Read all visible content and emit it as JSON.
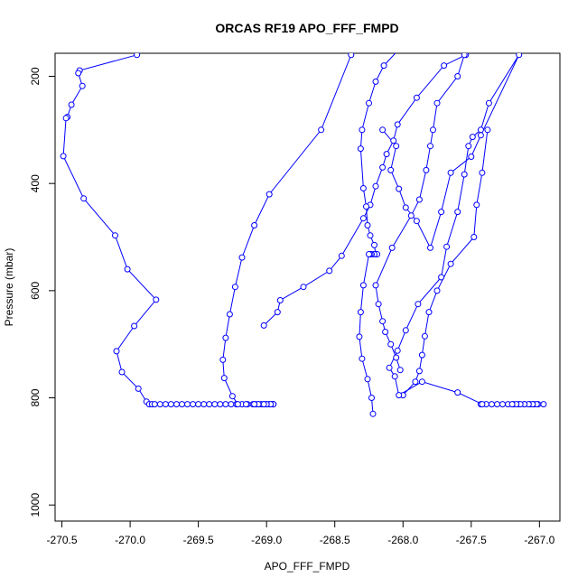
{
  "chart_data": {
    "type": "line",
    "title": "ORCAS RF19 APO_FFF_FMPD",
    "xlabel": "APO_FFF_FMPD",
    "ylabel": "Pressure (mbar)",
    "xlim": [
      -270.55,
      -266.85
    ],
    "ylim": [
      1030,
      157
    ],
    "y_inverted": true,
    "xticks": [
      -270.5,
      -270.0,
      -269.5,
      -269.0,
      -268.5,
      -268.0,
      -267.5,
      -267.0
    ],
    "xtick_labels": [
      "-270.5",
      "-270.0",
      "-269.5",
      "-269.0",
      "-268.5",
      "-268.0",
      "-267.5",
      "-267.0"
    ],
    "yticks": [
      200,
      400,
      600,
      800,
      1000
    ],
    "ytick_labels": [
      "200",
      "400",
      "600",
      "800",
      "1000"
    ],
    "grid": false,
    "series_color": "#0000ff",
    "series": [
      {
        "x": [
          -269.95,
          -270.37,
          -270.38,
          -270.35,
          -270.43,
          -270.46,
          -270.47,
          -270.49,
          -270.34,
          -270.11,
          -270.02,
          -269.81,
          -269.97,
          -270.1,
          -270.06,
          -269.94,
          -269.88,
          -269.86,
          -269.84,
          -269.82,
          -269.78,
          -269.74,
          -269.7,
          -269.66,
          -269.62,
          -269.58,
          -269.54,
          -269.5,
          -269.46,
          -269.42,
          -269.38,
          -269.34,
          -269.3,
          -269.26,
          -269.22,
          -269.18,
          -269.14,
          -269.1,
          -269.08,
          -269.06,
          -269.04,
          -269.02,
          -269.0,
          -268.98,
          -268.96,
          -268.95
        ],
        "y": [
          160,
          189,
          194,
          218,
          253,
          276,
          278,
          349,
          428,
          497,
          560,
          617,
          666,
          713,
          752,
          783,
          807,
          812,
          812,
          812,
          812,
          812,
          812,
          812,
          812,
          812,
          812,
          812,
          812,
          812,
          812,
          812,
          812,
          812,
          812,
          812,
          812,
          812,
          812,
          812,
          812,
          812,
          812,
          812,
          812,
          812
        ]
      },
      {
        "x": [
          -268.95,
          -268.97,
          -269.0,
          -269.02,
          -269.06,
          -269.09,
          -269.15,
          -269.21,
          -269.25,
          -269.31,
          -269.32,
          -269.3,
          -269.27,
          -269.23,
          -269.18,
          -269.09,
          -268.98,
          -268.6,
          -268.38
        ],
        "y": [
          812,
          812,
          812,
          812,
          812,
          812,
          812,
          812,
          797,
          763,
          729,
          688,
          644,
          593,
          538,
          478,
          420,
          300,
          160
        ]
      },
      {
        "x": [
          -269.02,
          -268.92,
          -268.9,
          -268.73,
          -268.54,
          -268.45,
          -268.29,
          -268.24,
          -268.2,
          -268.15,
          -268.12,
          -268.07,
          -268.04,
          -267.9,
          -267.7,
          -267.54
        ],
        "y": [
          665,
          640,
          618,
          593,
          563,
          535,
          465,
          440,
          405,
          370,
          345,
          320,
          290,
          240,
          180,
          160
        ]
      },
      {
        "x": [
          -268.2,
          -268.21,
          -268.24,
          -268.26,
          -268.27,
          -268.29,
          -268.31,
          -268.3,
          -268.25,
          -268.2,
          -268.14,
          -268.03,
          -267.87,
          -267.75,
          -267.55
        ],
        "y": [
          532,
          515,
          497,
          478,
          443,
          409,
          335,
          300,
          250,
          210,
          180,
          150,
          120,
          100,
          80
        ]
      },
      {
        "x": [
          -268.19,
          -268.21,
          -268.23,
          -268.24,
          -268.25,
          -268.29,
          -268.31,
          -268.32,
          -268.3,
          -268.26,
          -268.23,
          -268.22
        ],
        "y": [
          532,
          532,
          532,
          532,
          532,
          590,
          640,
          686,
          727,
          765,
          800,
          830
        ]
      },
      {
        "x": [
          -268.0,
          -267.91,
          -267.88,
          -267.86,
          -267.84,
          -267.81,
          -267.75,
          -267.65,
          -267.48,
          -267.46,
          -267.42,
          -267.38
        ],
        "y": [
          795,
          770,
          750,
          720,
          685,
          640,
          600,
          550,
          500,
          440,
          380,
          300
        ]
      },
      {
        "x": [
          -268.02,
          -268.05,
          -268.09,
          -268.13,
          -268.15,
          -268.18,
          -268.2,
          -268.08,
          -267.94,
          -267.88,
          -267.83,
          -267.8,
          -267.78,
          -267.75,
          -267.6,
          -267.55,
          -267.48
        ],
        "y": [
          748,
          725,
          700,
          677,
          657,
          625,
          590,
          520,
          460,
          430,
          375,
          330,
          300,
          250,
          200,
          160,
          130
        ]
      },
      {
        "x": [
          -267.43,
          -267.39,
          -267.35,
          -267.31,
          -267.27,
          -267.23,
          -267.19,
          -267.15,
          -267.11,
          -267.07,
          -267.04,
          -267.01,
          -266.97,
          -267.02,
          -267.05,
          -267.08,
          -267.11,
          -267.14,
          -267.17,
          -267.2
        ],
        "y": [
          812,
          812,
          812,
          812,
          812,
          812,
          812,
          812,
          812,
          812,
          812,
          812,
          812,
          812,
          812,
          812,
          812,
          812,
          812,
          812
        ]
      },
      {
        "x": [
          -267.42,
          -267.6,
          -267.86,
          -268.03,
          -268.06,
          -268.1,
          -268.04,
          -267.98,
          -267.89,
          -267.72,
          -267.68,
          -267.6,
          -267.55,
          -267.52,
          -267.49,
          -267.43,
          -267.37,
          -267.15,
          -267.43,
          -267.5,
          -267.65,
          -267.72,
          -267.8,
          -267.9,
          -267.98,
          -268.03,
          -268.09,
          -268.05,
          -268.15
        ],
        "y": [
          812,
          790,
          770,
          795,
          760,
          744,
          712,
          674,
          625,
          575,
          518,
          453,
          383,
          330,
          313,
          300,
          250,
          160,
          310,
          350,
          380,
          453,
          520,
          470,
          445,
          410,
          375,
          330,
          300
        ]
      }
    ]
  }
}
